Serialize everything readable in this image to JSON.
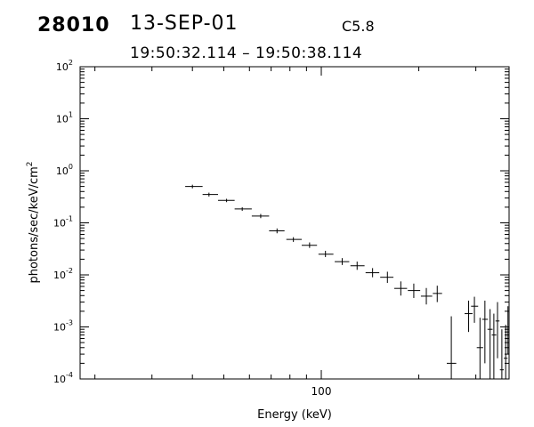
{
  "header": {
    "id": "28010",
    "date": "13-SEP-01",
    "goes_class": "C5.8",
    "time_range": "19:50:32.114 – 19:50:38.114"
  },
  "chart_data": {
    "type": "scatter",
    "title": "",
    "xlabel": "Energy (keV)",
    "ylabel": "photons/sec/keV/cm",
    "ylabel_sup": "2",
    "xscale": "log",
    "yscale": "log",
    "xlim": [
      18,
      380
    ],
    "ylim": [
      0.0001,
      100
    ],
    "x_tick_labels": [
      {
        "value": 100,
        "label": "100"
      }
    ],
    "y_tick_labels": [
      {
        "value": 100,
        "base": "10",
        "exp": "2"
      },
      {
        "value": 10,
        "base": "10",
        "exp": "1"
      },
      {
        "value": 1,
        "base": "10",
        "exp": "0"
      },
      {
        "value": 0.1,
        "base": "10",
        "exp": "-1"
      },
      {
        "value": 0.01,
        "base": "10",
        "exp": "-2"
      },
      {
        "value": 0.001,
        "base": "10",
        "exp": "-3"
      },
      {
        "value": 0.0001,
        "base": "10",
        "exp": "-4"
      }
    ],
    "grid": false,
    "points": [
      {
        "x": 40,
        "xlo": 38,
        "xhi": 43,
        "y": 0.5,
        "ylo": 0.46,
        "yhi": 0.54
      },
      {
        "x": 45,
        "xlo": 43,
        "xhi": 48,
        "y": 0.35,
        "ylo": 0.32,
        "yhi": 0.38
      },
      {
        "x": 51,
        "xlo": 48,
        "xhi": 54,
        "y": 0.27,
        "ylo": 0.25,
        "yhi": 0.29
      },
      {
        "x": 57,
        "xlo": 54,
        "xhi": 61,
        "y": 0.185,
        "ylo": 0.17,
        "yhi": 0.2
      },
      {
        "x": 65,
        "xlo": 61,
        "xhi": 69,
        "y": 0.135,
        "ylo": 0.123,
        "yhi": 0.148
      },
      {
        "x": 73,
        "xlo": 69,
        "xhi": 77,
        "y": 0.07,
        "ylo": 0.063,
        "yhi": 0.078
      },
      {
        "x": 82,
        "xlo": 78,
        "xhi": 87,
        "y": 0.048,
        "ylo": 0.043,
        "yhi": 0.053
      },
      {
        "x": 92,
        "xlo": 87,
        "xhi": 97,
        "y": 0.037,
        "ylo": 0.033,
        "yhi": 0.042
      },
      {
        "x": 103,
        "xlo": 98,
        "xhi": 109,
        "y": 0.025,
        "ylo": 0.022,
        "yhi": 0.029
      },
      {
        "x": 116,
        "xlo": 110,
        "xhi": 122,
        "y": 0.018,
        "ylo": 0.0155,
        "yhi": 0.021
      },
      {
        "x": 129,
        "xlo": 123,
        "xhi": 136,
        "y": 0.015,
        "ylo": 0.0125,
        "yhi": 0.018
      },
      {
        "x": 144,
        "xlo": 137,
        "xhi": 151,
        "y": 0.011,
        "ylo": 0.009,
        "yhi": 0.0135
      },
      {
        "x": 160,
        "xlo": 152,
        "xhi": 167,
        "y": 0.009,
        "ylo": 0.007,
        "yhi": 0.0115
      },
      {
        "x": 176,
        "xlo": 168,
        "xhi": 184,
        "y": 0.0055,
        "ylo": 0.004,
        "yhi": 0.0075
      },
      {
        "x": 193,
        "xlo": 185,
        "xhi": 202,
        "y": 0.005,
        "ylo": 0.0036,
        "yhi": 0.0068
      },
      {
        "x": 211,
        "xlo": 203,
        "xhi": 220,
        "y": 0.0039,
        "ylo": 0.0027,
        "yhi": 0.0056
      },
      {
        "x": 228,
        "xlo": 221,
        "xhi": 236,
        "y": 0.0044,
        "ylo": 0.003,
        "yhi": 0.0062
      },
      {
        "x": 252,
        "xlo": 244,
        "xhi": 261,
        "y": 0.0002,
        "ylo": 0.0001,
        "yhi": 0.0016
      },
      {
        "x": 285,
        "xlo": 277,
        "xhi": 293,
        "y": 0.0018,
        "ylo": 0.0008,
        "yhi": 0.0032
      },
      {
        "x": 297,
        "xlo": 290,
        "xhi": 305,
        "y": 0.0025,
        "ylo": 0.0012,
        "yhi": 0.0038
      },
      {
        "x": 309,
        "xlo": 302,
        "xhi": 316,
        "y": 0.0004,
        "ylo": 0.0001,
        "yhi": 0.0015
      },
      {
        "x": 320,
        "xlo": 314,
        "xhi": 327,
        "y": 0.0014,
        "ylo": 0.0002,
        "yhi": 0.0032
      },
      {
        "x": 332,
        "xlo": 326,
        "xhi": 338,
        "y": 0.0009,
        "ylo": 0.0001,
        "yhi": 0.0022
      },
      {
        "x": 341,
        "xlo": 336,
        "xhi": 347,
        "y": 0.0007,
        "ylo": 0.0001,
        "yhi": 0.0018
      },
      {
        "x": 350,
        "xlo": 345,
        "xhi": 355,
        "y": 0.0013,
        "ylo": 0.00025,
        "yhi": 0.003
      },
      {
        "x": 361,
        "xlo": 356,
        "xhi": 366,
        "y": 0.00015,
        "ylo": 0.0001,
        "yhi": 0.0009
      },
      {
        "x": 371,
        "xlo": 366,
        "xhi": 376,
        "y": 0.00025,
        "ylo": 0.0001,
        "yhi": 0.0011
      },
      {
        "x": 377,
        "xlo": 373,
        "xhi": 380,
        "y": 0.001,
        "ylo": 0.0003,
        "yhi": 0.0025
      }
    ]
  }
}
